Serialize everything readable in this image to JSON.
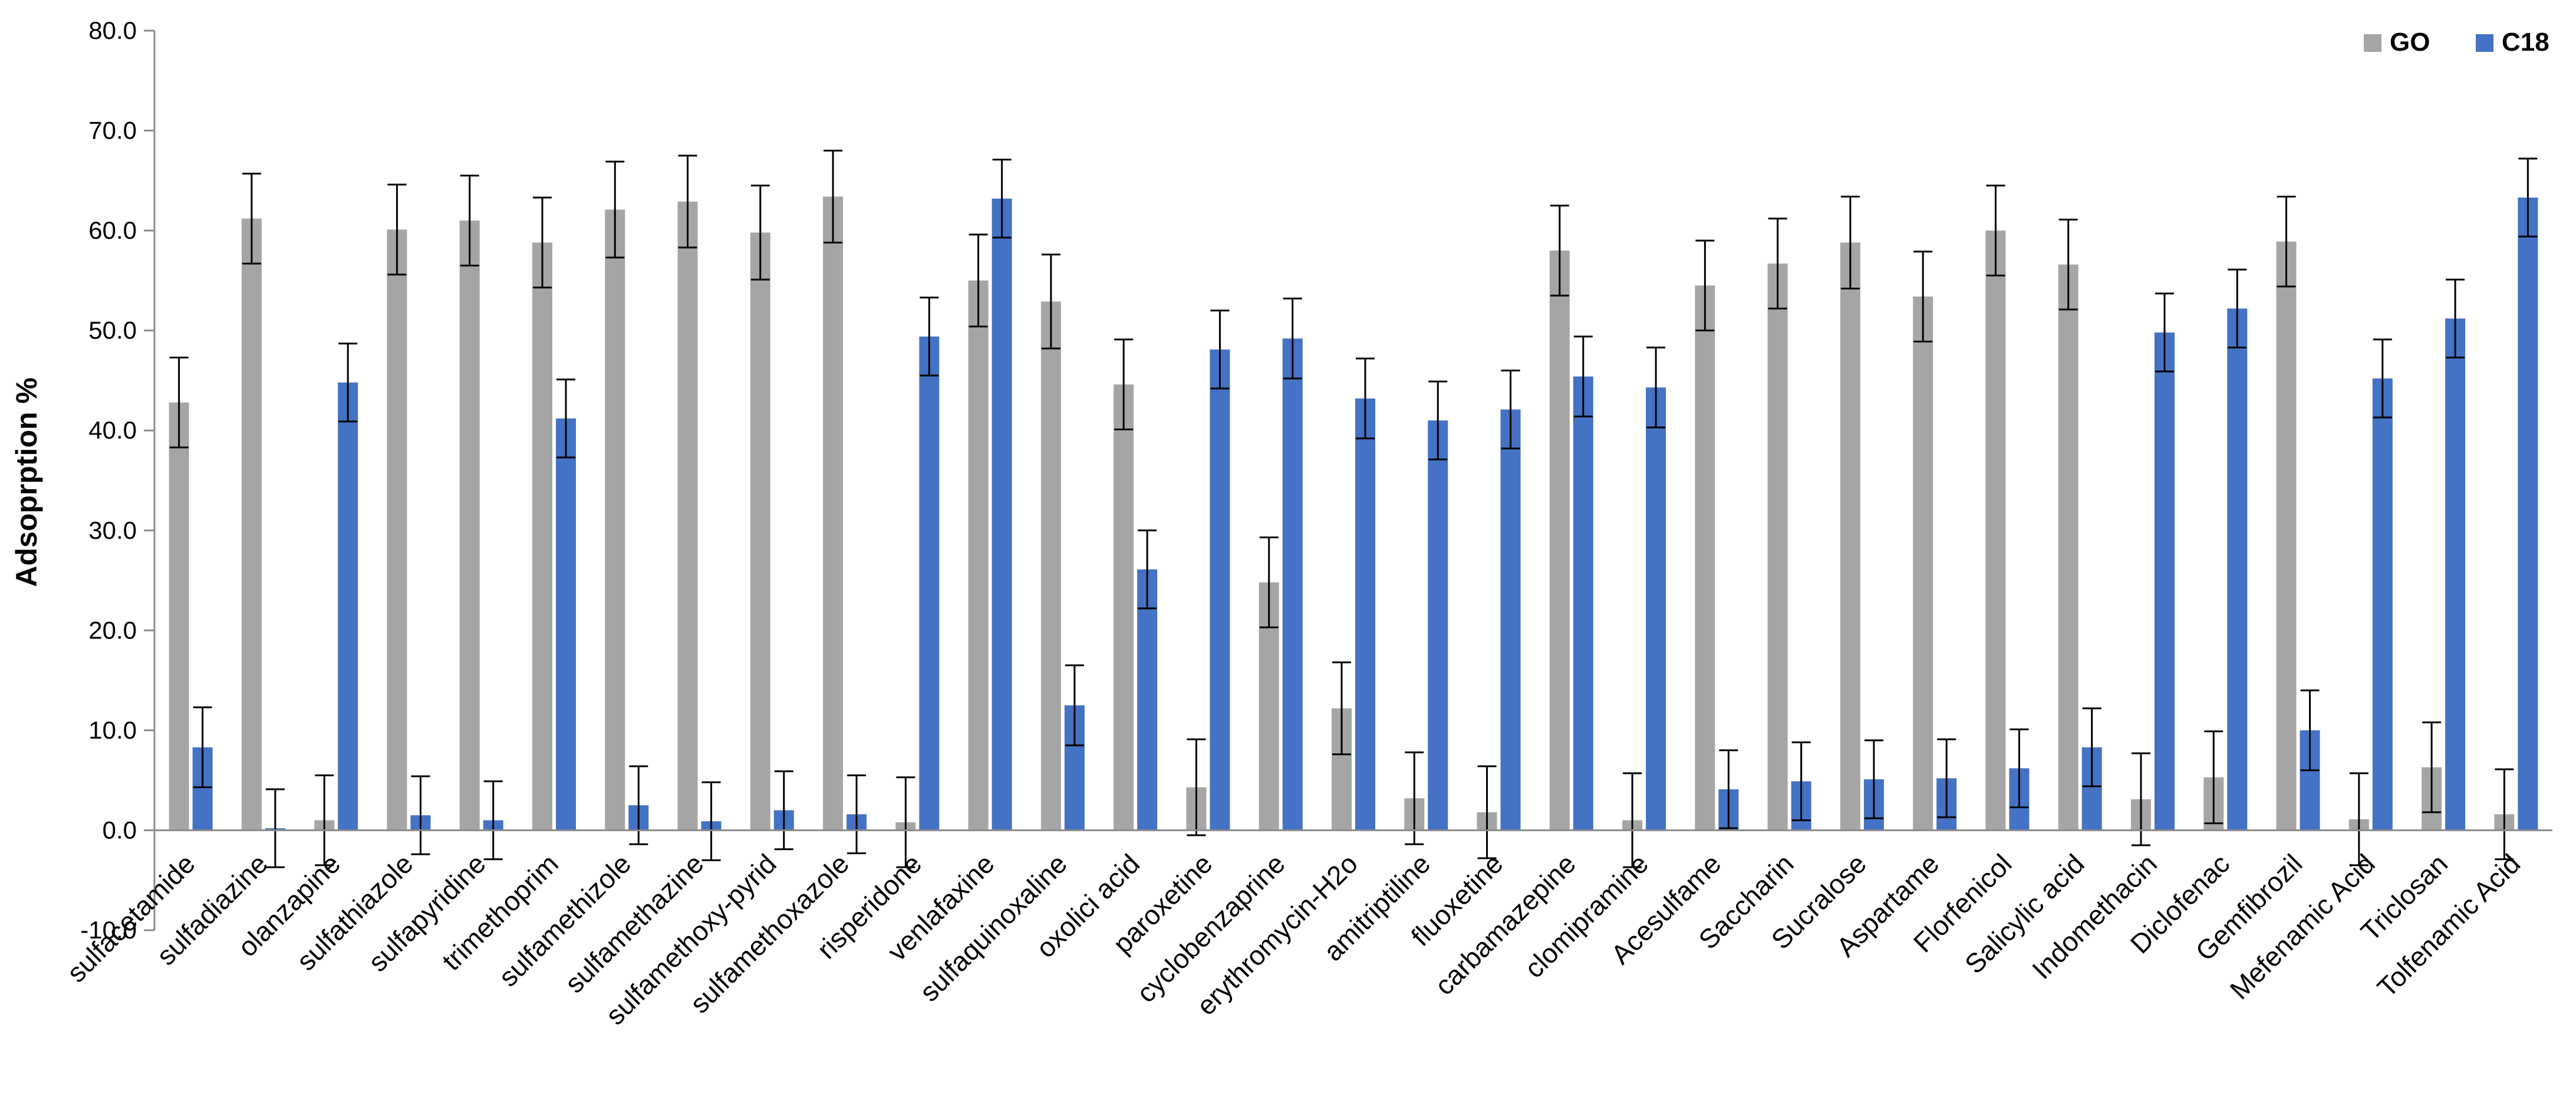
{
  "chart_data": {
    "type": "bar",
    "title": "",
    "xlabel": "",
    "ylabel": "Adsoprption %",
    "ylim": [
      -10,
      80
    ],
    "yticks": [
      "-10.0",
      "0.0",
      "10.0",
      "20.0",
      "30.0",
      "40.0",
      "50.0",
      "60.0",
      "70.0",
      "80.0"
    ],
    "ytick_values": [
      -10,
      0,
      10,
      20,
      30,
      40,
      50,
      60,
      70,
      80
    ],
    "grid": false,
    "legend_position": "top-right",
    "categories": [
      "sulfacetamide",
      "sulfadiazine",
      "olanzapine",
      "sulfathiazole",
      "sulfapyridine",
      "trimethoprim",
      "sulfamethizole",
      "sulfamethazine",
      "sulfamethoxy-pyrid",
      "sulfamethoxazole",
      "risperidone",
      "venlafaxine",
      "sulfaquinoxaline",
      "oxolici acid",
      "paroxetine",
      "cyclobenzaprine",
      "erythromycin-H2o",
      "amitriptiline",
      "fluoxetine",
      "carbamazepine",
      "clomipramine",
      "Acesulfame",
      "Saccharin",
      "Sucralose",
      "Aspartame",
      "Florfenicol",
      "Salicylic acid",
      "Indomethacin",
      "Diclofenac",
      "Gemfibrozil",
      "Mefenamic Acid",
      "Triclosan",
      "Tolfenamic Acid"
    ],
    "series": [
      {
        "name": "GO",
        "color": "#a5a5a5",
        "values": [
          42.8,
          61.2,
          1.0,
          60.1,
          61.0,
          58.8,
          62.1,
          62.9,
          59.8,
          63.4,
          0.8,
          55.0,
          52.9,
          44.6,
          4.3,
          24.8,
          12.2,
          3.2,
          1.8,
          58.0,
          1.0,
          54.5,
          56.7,
          58.8,
          53.4,
          60.0,
          56.6,
          3.1,
          5.3,
          58.9,
          1.1,
          6.3,
          1.6
        ],
        "errors": [
          4.5,
          4.5,
          4.5,
          4.5,
          4.5,
          4.5,
          4.8,
          4.6,
          4.7,
          4.6,
          4.5,
          4.6,
          4.7,
          4.5,
          4.8,
          4.5,
          4.6,
          4.6,
          4.6,
          4.5,
          4.7,
          4.5,
          4.5,
          4.6,
          4.5,
          4.5,
          4.5,
          4.6,
          4.6,
          4.5,
          4.6,
          4.5,
          4.5
        ]
      },
      {
        "name": "C18",
        "color": "#4472c4",
        "values": [
          8.3,
          0.2,
          44.8,
          1.5,
          1.0,
          41.2,
          2.5,
          0.9,
          2.0,
          1.6,
          49.4,
          63.2,
          12.5,
          26.1,
          48.1,
          49.2,
          43.2,
          41.0,
          42.1,
          45.4,
          44.3,
          4.1,
          4.9,
          5.1,
          5.2,
          6.2,
          8.3,
          49.8,
          52.2,
          10.0,
          45.2,
          51.2,
          63.3
        ],
        "errors": [
          4.0,
          3.9,
          3.9,
          3.9,
          3.9,
          3.9,
          3.9,
          3.9,
          3.9,
          3.9,
          3.9,
          3.9,
          4.0,
          3.9,
          3.9,
          4.0,
          4.0,
          3.9,
          3.9,
          4.0,
          4.0,
          3.9,
          3.9,
          3.9,
          3.9,
          3.9,
          3.9,
          3.9,
          3.9,
          4.0,
          3.9,
          3.9,
          3.9
        ]
      }
    ]
  }
}
